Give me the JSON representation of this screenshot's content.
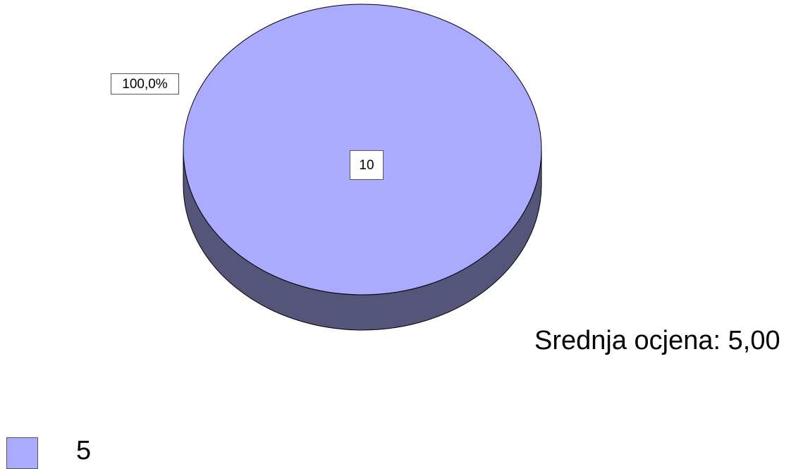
{
  "chart_data": {
    "type": "pie",
    "style": "3d",
    "slices": [
      {
        "label": "5",
        "value": 10,
        "percent": "100,0%",
        "color": "#aaaaff",
        "side_color": "#55557a"
      }
    ],
    "data_labels": {
      "value": "10",
      "percent": "100,0%"
    },
    "annotation": "Srednja ocjena: 5,00",
    "legend": {
      "placement": "bottom-left",
      "entries": [
        "5"
      ]
    }
  }
}
